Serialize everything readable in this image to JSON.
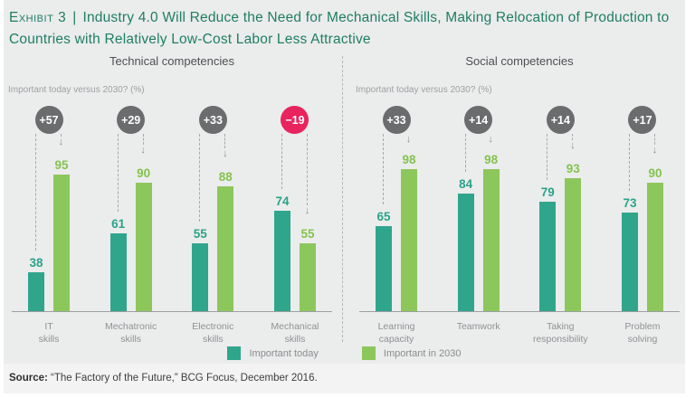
{
  "page": {
    "background": "#EBECEC",
    "footer_background": "#F3F3F4"
  },
  "header": {
    "exhibit_label": "Exhibit 3",
    "separator": "|",
    "title": "Industry 4.0 Will Reduce the Need for Mechanical Skills, Making Relocation of Production to Countries with Relatively Low-Cost Labor Less Attractive",
    "color": "#1F7E63"
  },
  "legend": {
    "items": [
      {
        "label": "Important today",
        "color": "#2FA68C"
      },
      {
        "label": "Important in 2030",
        "color": "#8CC75C"
      }
    ]
  },
  "source": {
    "label": "Source:",
    "text": " “The Factory of the Future,” BCG Focus, December 2016."
  },
  "badge_colors": {
    "positive": "#6B6C6E",
    "negative": "#E8235D"
  },
  "series_colors": {
    "today": "#2FA68C",
    "in2030": "#8CC75C"
  },
  "label_colors": {
    "today": "#2AA38A",
    "in2030": "#85C24F"
  },
  "chart_data": [
    {
      "type": "bar",
      "panel_title": "Technical competencies",
      "subtitle": "Important today versus 2030? (%)",
      "categories": [
        "IT skills",
        "Mechatronic skills",
        "Electronic skills",
        "Mechanical skills"
      ],
      "category_lines": [
        [
          "IT",
          "skills"
        ],
        [
          "Mechatronic",
          "skills"
        ],
        [
          "Electronic",
          "skills"
        ],
        [
          "Mechanical",
          "skills"
        ]
      ],
      "series": [
        {
          "name": "Important today",
          "color": "#2FA68C",
          "values": [
            38,
            61,
            55,
            74
          ]
        },
        {
          "name": "Important in 2030",
          "color": "#8CC75C",
          "values": [
            95,
            90,
            88,
            55
          ]
        }
      ],
      "deltas": [
        {
          "label": "+57",
          "negative": false
        },
        {
          "label": "+29",
          "negative": false
        },
        {
          "label": "+33",
          "negative": false
        },
        {
          "label": "−19",
          "negative": true
        }
      ],
      "ylim": [
        0,
        100
      ],
      "grid": false,
      "legend_position": "bottom"
    },
    {
      "type": "bar",
      "panel_title": "Social competencies",
      "subtitle": "Important today versus 2030? (%)",
      "categories": [
        "Learning capacity",
        "Teamwork",
        "Taking responsibility",
        "Problem solving"
      ],
      "category_lines": [
        [
          "Learning",
          "capacity"
        ],
        [
          "Teamwork"
        ],
        [
          "Taking",
          "responsibility"
        ],
        [
          "Problem",
          "solving"
        ]
      ],
      "series": [
        {
          "name": "Important today",
          "color": "#2FA68C",
          "values": [
            65,
            84,
            79,
            73
          ]
        },
        {
          "name": "Important in 2030",
          "color": "#8CC75C",
          "values": [
            98,
            98,
            93,
            90
          ]
        }
      ],
      "deltas": [
        {
          "label": "+33",
          "negative": false
        },
        {
          "label": "+14",
          "negative": false
        },
        {
          "label": "+14",
          "negative": false
        },
        {
          "label": "+17",
          "negative": false
        }
      ],
      "ylim": [
        0,
        100
      ],
      "grid": false,
      "legend_position": "bottom"
    }
  ]
}
